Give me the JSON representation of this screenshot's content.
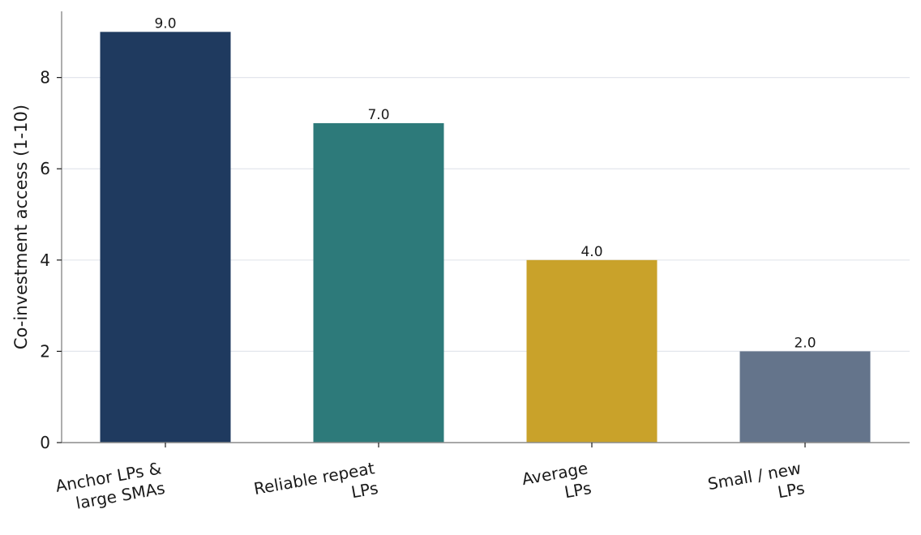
{
  "chart_data": {
    "type": "bar",
    "categories": [
      [
        "Anchor LPs &",
        "large SMAs"
      ],
      [
        "Reliable repeat",
        "LPs"
      ],
      [
        "Average",
        "LPs"
      ],
      [
        "Small / new",
        "LPs"
      ]
    ],
    "values": [
      9.0,
      7.0,
      4.0,
      2.0
    ],
    "data_labels": [
      "9.0",
      "7.0",
      "4.0",
      "2.0"
    ],
    "colors": [
      "#1f3a5f",
      "#2d7a7a",
      "#c9a22a",
      "#64748b"
    ],
    "title": "",
    "xlabel": "",
    "ylabel": "Co-investment access (1-10)",
    "ylim": [
      0,
      9.45
    ],
    "yticks": [
      0,
      2,
      4,
      6,
      8
    ],
    "grid": "horizontal",
    "legend": "none"
  }
}
